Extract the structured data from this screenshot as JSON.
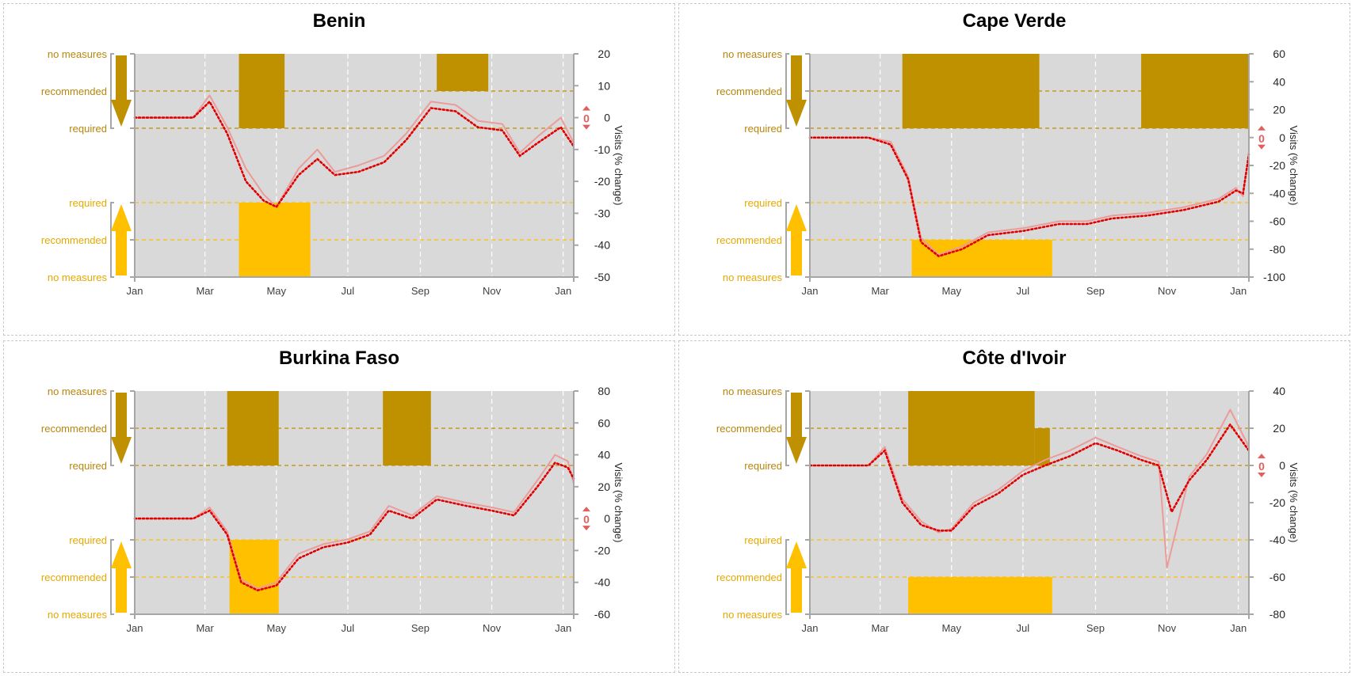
{
  "colors": {
    "plot_bg": "#d9d9d9",
    "axis": "#a6a6a6",
    "closing": "#bf9000",
    "closing_label": "#b8860b",
    "opening": "#ffc000",
    "opening_label": "#e6a800",
    "raw_line": "#ec9b9b",
    "trend_line": "#e00000",
    "zero_marker": "#e06060",
    "grid": "#ffffff"
  },
  "measure_labels": {
    "no_measures": "no measures",
    "recommended": "recommended",
    "required": "required"
  },
  "zero_marker_label": "0",
  "chart_data": [
    {
      "type": "line",
      "title": "Benin",
      "ylabel": "Visits (% change)",
      "ylim": [
        -50,
        20
      ],
      "yticks": [
        20,
        10,
        0,
        -10,
        -20,
        -30,
        -40,
        -50
      ],
      "x_range": [
        "2020-01-01",
        "2021-01-10"
      ],
      "x_ticks": [
        "2020-01-01",
        "2020-03-01",
        "2020-05-01",
        "2020-07-01",
        "2020-09-01",
        "2020-11-01",
        "2021-01-01"
      ],
      "x_tick_labels": [
        "Jan",
        "Mar",
        "May",
        "Jul",
        "Sep",
        "Nov",
        "Jan"
      ],
      "closing_measures": [
        {
          "start": "2020-03-30",
          "end": "2020-05-08",
          "level": "required"
        },
        {
          "start": "2020-09-15",
          "end": "2020-10-29",
          "level": "recommended"
        }
      ],
      "opening_measures": [
        {
          "start": "2020-03-30",
          "end": "2020-05-30",
          "level": "required"
        }
      ],
      "trend": {
        "x": [
          "2020-01-01",
          "2020-02-20",
          "2020-03-05",
          "2020-03-20",
          "2020-04-05",
          "2020-04-20",
          "2020-05-01",
          "2020-05-20",
          "2020-06-05",
          "2020-06-20",
          "2020-07-10",
          "2020-08-01",
          "2020-08-20",
          "2020-09-10",
          "2020-10-01",
          "2020-10-20",
          "2020-11-10",
          "2020-11-25",
          "2020-12-10",
          "2020-12-30",
          "2021-01-10"
        ],
        "y": [
          0,
          0,
          5,
          -5,
          -20,
          -26,
          -28,
          -18,
          -13,
          -18,
          -17,
          -14,
          -7,
          3,
          2,
          -3,
          -4,
          -12,
          -8,
          -3,
          -9
        ]
      },
      "raw": {
        "x": [
          "2020-01-01",
          "2020-02-20",
          "2020-03-05",
          "2020-03-20",
          "2020-04-05",
          "2020-04-20",
          "2020-05-01",
          "2020-05-20",
          "2020-06-05",
          "2020-06-20",
          "2020-07-10",
          "2020-08-01",
          "2020-08-20",
          "2020-09-10",
          "2020-10-01",
          "2020-10-20",
          "2020-11-10",
          "2020-11-25",
          "2020-12-10",
          "2020-12-30",
          "2021-01-10"
        ],
        "y": [
          0,
          0,
          7,
          -3,
          -16,
          -24,
          -28,
          -16,
          -10,
          -17,
          -15,
          -12,
          -5,
          5,
          4,
          -1,
          -2,
          -11,
          -6,
          0,
          -8
        ]
      }
    },
    {
      "type": "line",
      "title": "Cape Verde",
      "ylabel": "Visits (% change)",
      "ylim": [
        -100,
        60
      ],
      "yticks": [
        60,
        40,
        20,
        0,
        -20,
        -40,
        -60,
        -80,
        -100
      ],
      "x_range": [
        "2020-01-01",
        "2021-01-10"
      ],
      "x_ticks": [
        "2020-01-01",
        "2020-03-01",
        "2020-05-01",
        "2020-07-01",
        "2020-09-01",
        "2020-11-01",
        "2021-01-01"
      ],
      "x_tick_labels": [
        "Jan",
        "Mar",
        "May",
        "Jul",
        "Sep",
        "Nov",
        "Jan"
      ],
      "closing_measures": [
        {
          "start": "2020-03-20",
          "end": "2020-07-15",
          "level": "required"
        },
        {
          "start": "2020-10-10",
          "end": "2021-01-10",
          "level": "required"
        }
      ],
      "opening_measures": [
        {
          "start": "2020-03-28",
          "end": "2020-07-26",
          "level": "recommended"
        }
      ],
      "trend": {
        "x": [
          "2020-01-01",
          "2020-02-20",
          "2020-03-10",
          "2020-03-25",
          "2020-04-05",
          "2020-04-20",
          "2020-05-10",
          "2020-06-01",
          "2020-07-01",
          "2020-08-01",
          "2020-08-25",
          "2020-09-15",
          "2020-10-15",
          "2020-11-15",
          "2020-12-15",
          "2020-12-30",
          "2021-01-05",
          "2021-01-10"
        ],
        "y": [
          0,
          0,
          -5,
          -30,
          -75,
          -85,
          -80,
          -70,
          -67,
          -62,
          -62,
          -58,
          -56,
          -52,
          -46,
          -38,
          -40,
          -12
        ]
      },
      "raw": {
        "x": [
          "2020-01-01",
          "2020-02-20",
          "2020-03-10",
          "2020-03-25",
          "2020-04-05",
          "2020-04-20",
          "2020-05-10",
          "2020-06-01",
          "2020-07-01",
          "2020-08-01",
          "2020-08-25",
          "2020-09-15",
          "2020-10-15",
          "2020-11-15",
          "2020-12-15",
          "2020-12-30",
          "2021-01-05",
          "2021-01-10"
        ],
        "y": [
          0,
          0,
          -3,
          -28,
          -72,
          -84,
          -78,
          -68,
          -65,
          -60,
          -60,
          -56,
          -54,
          -50,
          -44,
          -36,
          -42,
          -10
        ]
      }
    },
    {
      "type": "line",
      "title": "Burkina Faso",
      "ylabel": "Visits (% change)",
      "ylim": [
        -60,
        80
      ],
      "yticks": [
        80,
        60,
        40,
        20,
        0,
        -20,
        -40,
        -60
      ],
      "x_range": [
        "2020-01-01",
        "2021-01-10"
      ],
      "x_ticks": [
        "2020-01-01",
        "2020-03-01",
        "2020-05-01",
        "2020-07-01",
        "2020-09-01",
        "2020-11-01",
        "2021-01-01"
      ],
      "x_tick_labels": [
        "Jan",
        "Mar",
        "May",
        "Jul",
        "Sep",
        "Nov",
        "Jan"
      ],
      "closing_measures": [
        {
          "start": "2020-03-20",
          "end": "2020-05-03",
          "level": "required"
        },
        {
          "start": "2020-07-31",
          "end": "2020-09-10",
          "level": "required"
        }
      ],
      "opening_measures": [
        {
          "start": "2020-03-22",
          "end": "2020-05-03",
          "level": "required"
        }
      ],
      "trend": {
        "x": [
          "2020-01-01",
          "2020-02-20",
          "2020-03-05",
          "2020-03-20",
          "2020-04-01",
          "2020-04-15",
          "2020-05-01",
          "2020-05-20",
          "2020-06-10",
          "2020-07-01",
          "2020-07-20",
          "2020-08-05",
          "2020-08-25",
          "2020-09-15",
          "2020-10-10",
          "2020-11-01",
          "2020-11-20",
          "2020-12-10",
          "2020-12-25",
          "2021-01-05",
          "2021-01-10"
        ],
        "y": [
          0,
          0,
          5,
          -10,
          -40,
          -45,
          -42,
          -25,
          -18,
          -15,
          -10,
          5,
          0,
          12,
          8,
          5,
          2,
          20,
          35,
          32,
          25
        ]
      },
      "raw": {
        "x": [
          "2020-01-01",
          "2020-02-20",
          "2020-03-05",
          "2020-03-20",
          "2020-04-01",
          "2020-04-15",
          "2020-05-01",
          "2020-05-20",
          "2020-06-10",
          "2020-07-01",
          "2020-07-20",
          "2020-08-05",
          "2020-08-25",
          "2020-09-15",
          "2020-10-10",
          "2020-11-01",
          "2020-11-20",
          "2020-12-10",
          "2020-12-25",
          "2021-01-05",
          "2021-01-10"
        ],
        "y": [
          0,
          0,
          7,
          -8,
          -38,
          -44,
          -40,
          -22,
          -16,
          -13,
          -8,
          8,
          2,
          14,
          10,
          7,
          4,
          24,
          40,
          36,
          22
        ]
      }
    },
    {
      "type": "line",
      "title": "Côte d'Ivoir",
      "ylabel": "Visits (% change)",
      "ylim": [
        -80,
        40
      ],
      "yticks": [
        40,
        20,
        0,
        -20,
        -40,
        -60,
        -80
      ],
      "x_range": [
        "2020-01-01",
        "2021-01-10"
      ],
      "x_ticks": [
        "2020-01-01",
        "2020-03-01",
        "2020-05-01",
        "2020-07-01",
        "2020-09-01",
        "2020-11-01",
        "2021-01-01"
      ],
      "x_tick_labels": [
        "Jan",
        "Mar",
        "May",
        "Jul",
        "Sep",
        "Nov",
        "Jan"
      ],
      "closing_measures": [
        {
          "start": "2020-03-25",
          "end": "2020-07-11",
          "level": "required"
        },
        {
          "start": "2020-07-11",
          "end": "2020-07-24",
          "level": "required",
          "upto": "recommended"
        }
      ],
      "opening_measures": [
        {
          "start": "2020-03-25",
          "end": "2020-07-26",
          "level": "recommended"
        }
      ],
      "trend": {
        "x": [
          "2020-01-01",
          "2020-02-20",
          "2020-03-05",
          "2020-03-20",
          "2020-04-05",
          "2020-04-20",
          "2020-05-01",
          "2020-05-20",
          "2020-06-10",
          "2020-07-01",
          "2020-07-20",
          "2020-08-10",
          "2020-09-01",
          "2020-09-20",
          "2020-10-10",
          "2020-10-25",
          "2020-11-05",
          "2020-11-20",
          "2020-12-05",
          "2020-12-25",
          "2021-01-10"
        ],
        "y": [
          0,
          0,
          8,
          -20,
          -32,
          -35,
          -35,
          -22,
          -15,
          -5,
          0,
          5,
          12,
          8,
          3,
          0,
          -25,
          -8,
          3,
          22,
          8
        ]
      },
      "raw": {
        "x": [
          "2020-01-01",
          "2020-02-20",
          "2020-03-05",
          "2020-03-20",
          "2020-04-05",
          "2020-04-20",
          "2020-05-01",
          "2020-05-20",
          "2020-06-10",
          "2020-07-01",
          "2020-07-20",
          "2020-08-10",
          "2020-09-01",
          "2020-09-20",
          "2020-10-10",
          "2020-10-25",
          "2020-11-01",
          "2020-11-20",
          "2020-12-05",
          "2020-12-25",
          "2021-01-10"
        ],
        "y": [
          0,
          0,
          10,
          -18,
          -30,
          -36,
          -34,
          -20,
          -13,
          -3,
          3,
          8,
          15,
          10,
          5,
          2,
          -55,
          -6,
          6,
          30,
          10
        ]
      }
    }
  ]
}
